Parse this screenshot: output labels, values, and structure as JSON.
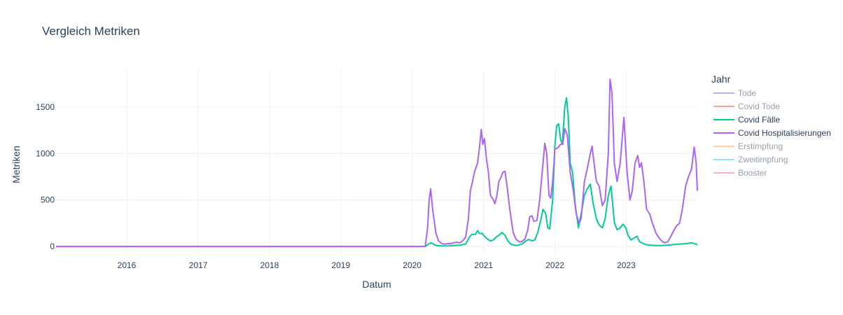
{
  "chart_data": {
    "type": "line",
    "title": "Vergleich Metriken",
    "xlabel": "Datum",
    "ylabel": "Metriken",
    "x_tick_labels": [
      "2016",
      "2017",
      "2018",
      "2019",
      "2020",
      "2021",
      "2022",
      "2023"
    ],
    "y_ticks": [
      0,
      500,
      1000,
      1500
    ],
    "xlim": [
      "2015-01-04",
      "2023-12-31"
    ],
    "ylim": [
      -90,
      1900
    ],
    "grid": true,
    "legend": {
      "title": "Jahr",
      "placement": "right"
    },
    "series": [
      {
        "name": "Tode",
        "color": "#636efa",
        "visible": false,
        "points": []
      },
      {
        "name": "Covid Tode",
        "color": "#ef553b",
        "visible": false,
        "points": []
      },
      {
        "name": "Covid Fälle",
        "color": "#00cc96",
        "visible": true,
        "points": [
          [
            "2015-01-04",
            0
          ],
          [
            "2016-01-01",
            0
          ],
          [
            "2017-01-01",
            0
          ],
          [
            "2018-01-01",
            0
          ],
          [
            "2019-01-01",
            0
          ],
          [
            "2020-01-01",
            0
          ],
          [
            "2020-03-08",
            0
          ],
          [
            "2020-03-22",
            20
          ],
          [
            "2020-04-05",
            40
          ],
          [
            "2020-04-19",
            25
          ],
          [
            "2020-05-03",
            10
          ],
          [
            "2020-06-01",
            5
          ],
          [
            "2020-07-01",
            5
          ],
          [
            "2020-08-01",
            10
          ],
          [
            "2020-09-01",
            15
          ],
          [
            "2020-10-01",
            25
          ],
          [
            "2020-10-20",
            100
          ],
          [
            "2020-11-01",
            130
          ],
          [
            "2020-11-20",
            130
          ],
          [
            "2020-12-01",
            170
          ],
          [
            "2020-12-10",
            140
          ],
          [
            "2020-12-25",
            140
          ],
          [
            "2021-01-05",
            110
          ],
          [
            "2021-01-20",
            80
          ],
          [
            "2021-02-05",
            60
          ],
          [
            "2021-02-20",
            70
          ],
          [
            "2021-03-05",
            100
          ],
          [
            "2021-03-20",
            120
          ],
          [
            "2021-04-05",
            150
          ],
          [
            "2021-04-20",
            120
          ],
          [
            "2021-05-05",
            60
          ],
          [
            "2021-05-20",
            25
          ],
          [
            "2021-06-05",
            15
          ],
          [
            "2021-06-20",
            10
          ],
          [
            "2021-07-05",
            20
          ],
          [
            "2021-07-20",
            30
          ],
          [
            "2021-08-05",
            60
          ],
          [
            "2021-08-20",
            75
          ],
          [
            "2021-09-05",
            60
          ],
          [
            "2021-09-20",
            70
          ],
          [
            "2021-10-05",
            150
          ],
          [
            "2021-10-20",
            280
          ],
          [
            "2021-11-01",
            400
          ],
          [
            "2021-11-15",
            350
          ],
          [
            "2021-11-25",
            200
          ],
          [
            "2021-12-05",
            190
          ],
          [
            "2021-12-20",
            500
          ],
          [
            "2022-01-01",
            1100
          ],
          [
            "2022-01-10",
            1300
          ],
          [
            "2022-01-20",
            1320
          ],
          [
            "2022-01-30",
            1150
          ],
          [
            "2022-02-08",
            1100
          ],
          [
            "2022-02-20",
            1500
          ],
          [
            "2022-03-01",
            1600
          ],
          [
            "2022-03-10",
            1400
          ],
          [
            "2022-03-20",
            900
          ],
          [
            "2022-04-01",
            800
          ],
          [
            "2022-04-15",
            450
          ],
          [
            "2022-05-01",
            200
          ],
          [
            "2022-05-15",
            350
          ],
          [
            "2022-06-01",
            550
          ],
          [
            "2022-06-15",
            620
          ],
          [
            "2022-07-01",
            670
          ],
          [
            "2022-07-15",
            470
          ],
          [
            "2022-08-01",
            300
          ],
          [
            "2022-08-15",
            230
          ],
          [
            "2022-09-01",
            200
          ],
          [
            "2022-09-15",
            300
          ],
          [
            "2022-10-01",
            550
          ],
          [
            "2022-10-15",
            650
          ],
          [
            "2022-11-01",
            260
          ],
          [
            "2022-11-15",
            180
          ],
          [
            "2022-12-01",
            200
          ],
          [
            "2022-12-15",
            240
          ],
          [
            "2022-12-30",
            200
          ],
          [
            "2023-01-10",
            120
          ],
          [
            "2023-01-25",
            70
          ],
          [
            "2023-02-10",
            90
          ],
          [
            "2023-02-25",
            110
          ],
          [
            "2023-03-10",
            50
          ],
          [
            "2023-03-25",
            35
          ],
          [
            "2023-04-10",
            20
          ],
          [
            "2023-05-01",
            15
          ],
          [
            "2023-06-01",
            10
          ],
          [
            "2023-07-01",
            10
          ],
          [
            "2023-08-01",
            15
          ],
          [
            "2023-09-01",
            20
          ],
          [
            "2023-10-01",
            25
          ],
          [
            "2023-11-01",
            30
          ],
          [
            "2023-12-01",
            40
          ],
          [
            "2023-12-31",
            20
          ]
        ]
      },
      {
        "name": "Covid Hospitalisierungen",
        "color": "#ab63fa",
        "visible": true,
        "points": [
          [
            "2015-01-04",
            0
          ],
          [
            "2016-01-01",
            0
          ],
          [
            "2017-01-01",
            0
          ],
          [
            "2018-01-01",
            0
          ],
          [
            "2019-01-01",
            0
          ],
          [
            "2020-01-01",
            0
          ],
          [
            "2020-03-08",
            0
          ],
          [
            "2020-03-20",
            200
          ],
          [
            "2020-03-28",
            500
          ],
          [
            "2020-04-05",
            620
          ],
          [
            "2020-04-15",
            400
          ],
          [
            "2020-05-01",
            150
          ],
          [
            "2020-05-15",
            60
          ],
          [
            "2020-06-01",
            30
          ],
          [
            "2020-06-15",
            25
          ],
          [
            "2020-07-01",
            30
          ],
          [
            "2020-07-15",
            30
          ],
          [
            "2020-08-01",
            40
          ],
          [
            "2020-08-15",
            45
          ],
          [
            "2020-09-01",
            40
          ],
          [
            "2020-09-15",
            60
          ],
          [
            "2020-10-01",
            100
          ],
          [
            "2020-10-15",
            300
          ],
          [
            "2020-10-25",
            600
          ],
          [
            "2020-11-05",
            700
          ],
          [
            "2020-11-15",
            800
          ],
          [
            "2020-12-01",
            900
          ],
          [
            "2020-12-10",
            1050
          ],
          [
            "2020-12-20",
            1260
          ],
          [
            "2020-12-28",
            1100
          ],
          [
            "2021-01-05",
            1160
          ],
          [
            "2021-01-15",
            950
          ],
          [
            "2021-01-25",
            800
          ],
          [
            "2021-02-05",
            550
          ],
          [
            "2021-02-15",
            520
          ],
          [
            "2021-02-28",
            460
          ],
          [
            "2021-03-10",
            550
          ],
          [
            "2021-03-20",
            700
          ],
          [
            "2021-04-01",
            750
          ],
          [
            "2021-04-10",
            800
          ],
          [
            "2021-04-20",
            810
          ],
          [
            "2021-05-01",
            650
          ],
          [
            "2021-05-15",
            400
          ],
          [
            "2021-06-01",
            150
          ],
          [
            "2021-06-15",
            80
          ],
          [
            "2021-07-01",
            50
          ],
          [
            "2021-07-15",
            50
          ],
          [
            "2021-08-01",
            80
          ],
          [
            "2021-08-15",
            180
          ],
          [
            "2021-08-25",
            320
          ],
          [
            "2021-09-05",
            330
          ],
          [
            "2021-09-15",
            270
          ],
          [
            "2021-10-01",
            280
          ],
          [
            "2021-10-15",
            500
          ],
          [
            "2021-11-01",
            900
          ],
          [
            "2021-11-10",
            1110
          ],
          [
            "2021-11-20",
            1000
          ],
          [
            "2021-12-01",
            550
          ],
          [
            "2021-12-10",
            520
          ],
          [
            "2021-12-20",
            700
          ],
          [
            "2022-01-01",
            1050
          ],
          [
            "2022-01-15",
            1060
          ],
          [
            "2022-01-30",
            1100
          ],
          [
            "2022-02-10",
            1100
          ],
          [
            "2022-02-20",
            1270
          ],
          [
            "2022-03-05",
            1200
          ],
          [
            "2022-03-20",
            800
          ],
          [
            "2022-04-05",
            600
          ],
          [
            "2022-04-20",
            350
          ],
          [
            "2022-05-05",
            250
          ],
          [
            "2022-05-15",
            300
          ],
          [
            "2022-06-01",
            700
          ],
          [
            "2022-06-15",
            830
          ],
          [
            "2022-07-01",
            1000
          ],
          [
            "2022-07-10",
            1080
          ],
          [
            "2022-07-20",
            900
          ],
          [
            "2022-08-01",
            700
          ],
          [
            "2022-08-15",
            650
          ],
          [
            "2022-09-01",
            440
          ],
          [
            "2022-09-15",
            500
          ],
          [
            "2022-10-01",
            1000
          ],
          [
            "2022-10-10",
            1800
          ],
          [
            "2022-10-20",
            1650
          ],
          [
            "2022-11-01",
            900
          ],
          [
            "2022-11-15",
            700
          ],
          [
            "2022-12-01",
            900
          ],
          [
            "2022-12-20",
            1390
          ],
          [
            "2023-01-05",
            800
          ],
          [
            "2023-01-20",
            500
          ],
          [
            "2023-02-01",
            600
          ],
          [
            "2023-02-15",
            900
          ],
          [
            "2023-03-01",
            980
          ],
          [
            "2023-03-10",
            850
          ],
          [
            "2023-03-20",
            900
          ],
          [
            "2023-04-01",
            700
          ],
          [
            "2023-04-15",
            400
          ],
          [
            "2023-05-01",
            350
          ],
          [
            "2023-05-15",
            250
          ],
          [
            "2023-06-01",
            150
          ],
          [
            "2023-06-15",
            100
          ],
          [
            "2023-07-01",
            60
          ],
          [
            "2023-07-15",
            40
          ],
          [
            "2023-08-01",
            50
          ],
          [
            "2023-08-15",
            100
          ],
          [
            "2023-09-01",
            170
          ],
          [
            "2023-09-15",
            220
          ],
          [
            "2023-10-01",
            250
          ],
          [
            "2023-10-15",
            400
          ],
          [
            "2023-11-01",
            650
          ],
          [
            "2023-11-15",
            750
          ],
          [
            "2023-12-01",
            830
          ],
          [
            "2023-12-15",
            1070
          ],
          [
            "2023-12-25",
            900
          ],
          [
            "2023-12-31",
            600
          ]
        ]
      },
      {
        "name": "Erstimpfung",
        "color": "#ffa15a",
        "visible": false,
        "points": []
      },
      {
        "name": "Zweitimpfung",
        "color": "#19d3f3",
        "visible": false,
        "points": []
      },
      {
        "name": "Booster",
        "color": "#ff6692",
        "visible": false,
        "points": []
      }
    ]
  }
}
